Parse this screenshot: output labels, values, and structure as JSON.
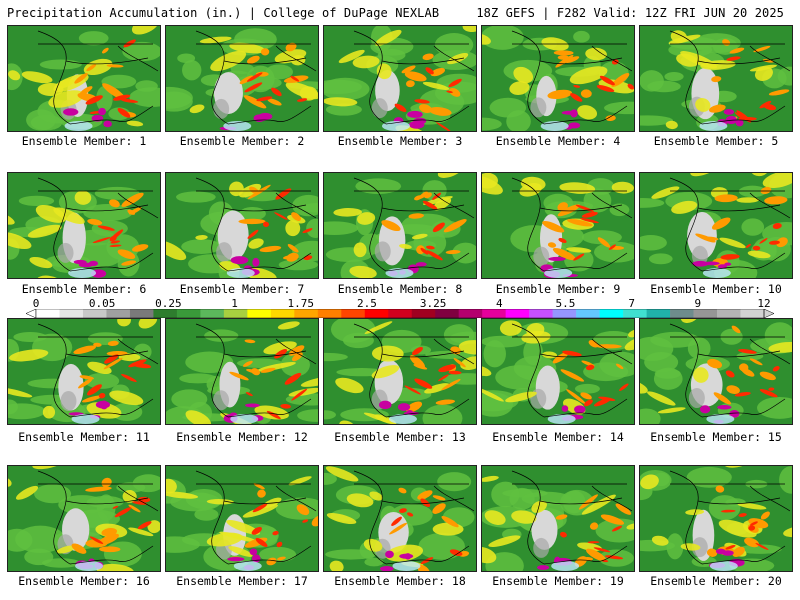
{
  "header": {
    "left": "Precipitation Accumulation (in.) | College of DuPage NEXLAB",
    "right": "18Z GEFS | F282 Valid: 12Z FRI JUN 20 2025"
  },
  "members": [
    {
      "label": "Ensemble Member: 1"
    },
    {
      "label": "Ensemble Member: 2"
    },
    {
      "label": "Ensemble Member: 3"
    },
    {
      "label": "Ensemble Member: 4"
    },
    {
      "label": "Ensemble Member: 5"
    },
    {
      "label": "Ensemble Member: 6"
    },
    {
      "label": "Ensemble Member: 7"
    },
    {
      "label": "Ensemble Member: 8"
    },
    {
      "label": "Ensemble Member: 9"
    },
    {
      "label": "Ensemble Member: 10"
    },
    {
      "label": "Ensemble Member: 11"
    },
    {
      "label": "Ensemble Member: 12"
    },
    {
      "label": "Ensemble Member: 13"
    },
    {
      "label": "Ensemble Member: 14"
    },
    {
      "label": "Ensemble Member: 15"
    },
    {
      "label": "Ensemble Member: 16"
    },
    {
      "label": "Ensemble Member: 17"
    },
    {
      "label": "Ensemble Member: 18"
    },
    {
      "label": "Ensemble Member: 19"
    },
    {
      "label": "Ensemble Member: 20"
    }
  ],
  "colorbar": {
    "labels": [
      "0",
      "0.05",
      "0.25",
      "1",
      "1.75",
      "2.5",
      "3.25",
      "4",
      "5.5",
      "7",
      "9",
      "12"
    ],
    "colors": [
      "#ffffff",
      "#e6e6e6",
      "#c8c8c8",
      "#a0a0a0",
      "#7a7a7a",
      "#2e7d2e",
      "#3a9a3a",
      "#5cb85c",
      "#a8d040",
      "#ffff00",
      "#ffd700",
      "#ffa500",
      "#ff7f00",
      "#ff4500",
      "#ff0000",
      "#d2001e",
      "#a00020",
      "#800040",
      "#b4006e",
      "#e6009c",
      "#ff00ff",
      "#c850ff",
      "#9696ff",
      "#64c8ff",
      "#00ffff",
      "#40e0d0",
      "#20b2aa",
      "#6e8c8c",
      "#969696",
      "#b4b4b4",
      "#d2d2d2"
    ]
  },
  "map_colors": {
    "ocean_green": "#2f8f2f",
    "land_light_green": "#5fbf3f",
    "yellow": "#e8e820",
    "orange": "#ff9a00",
    "red": "#ff2a00",
    "magenta": "#c800a0",
    "white_gray": "#d8d8d8",
    "border": "#000000"
  }
}
